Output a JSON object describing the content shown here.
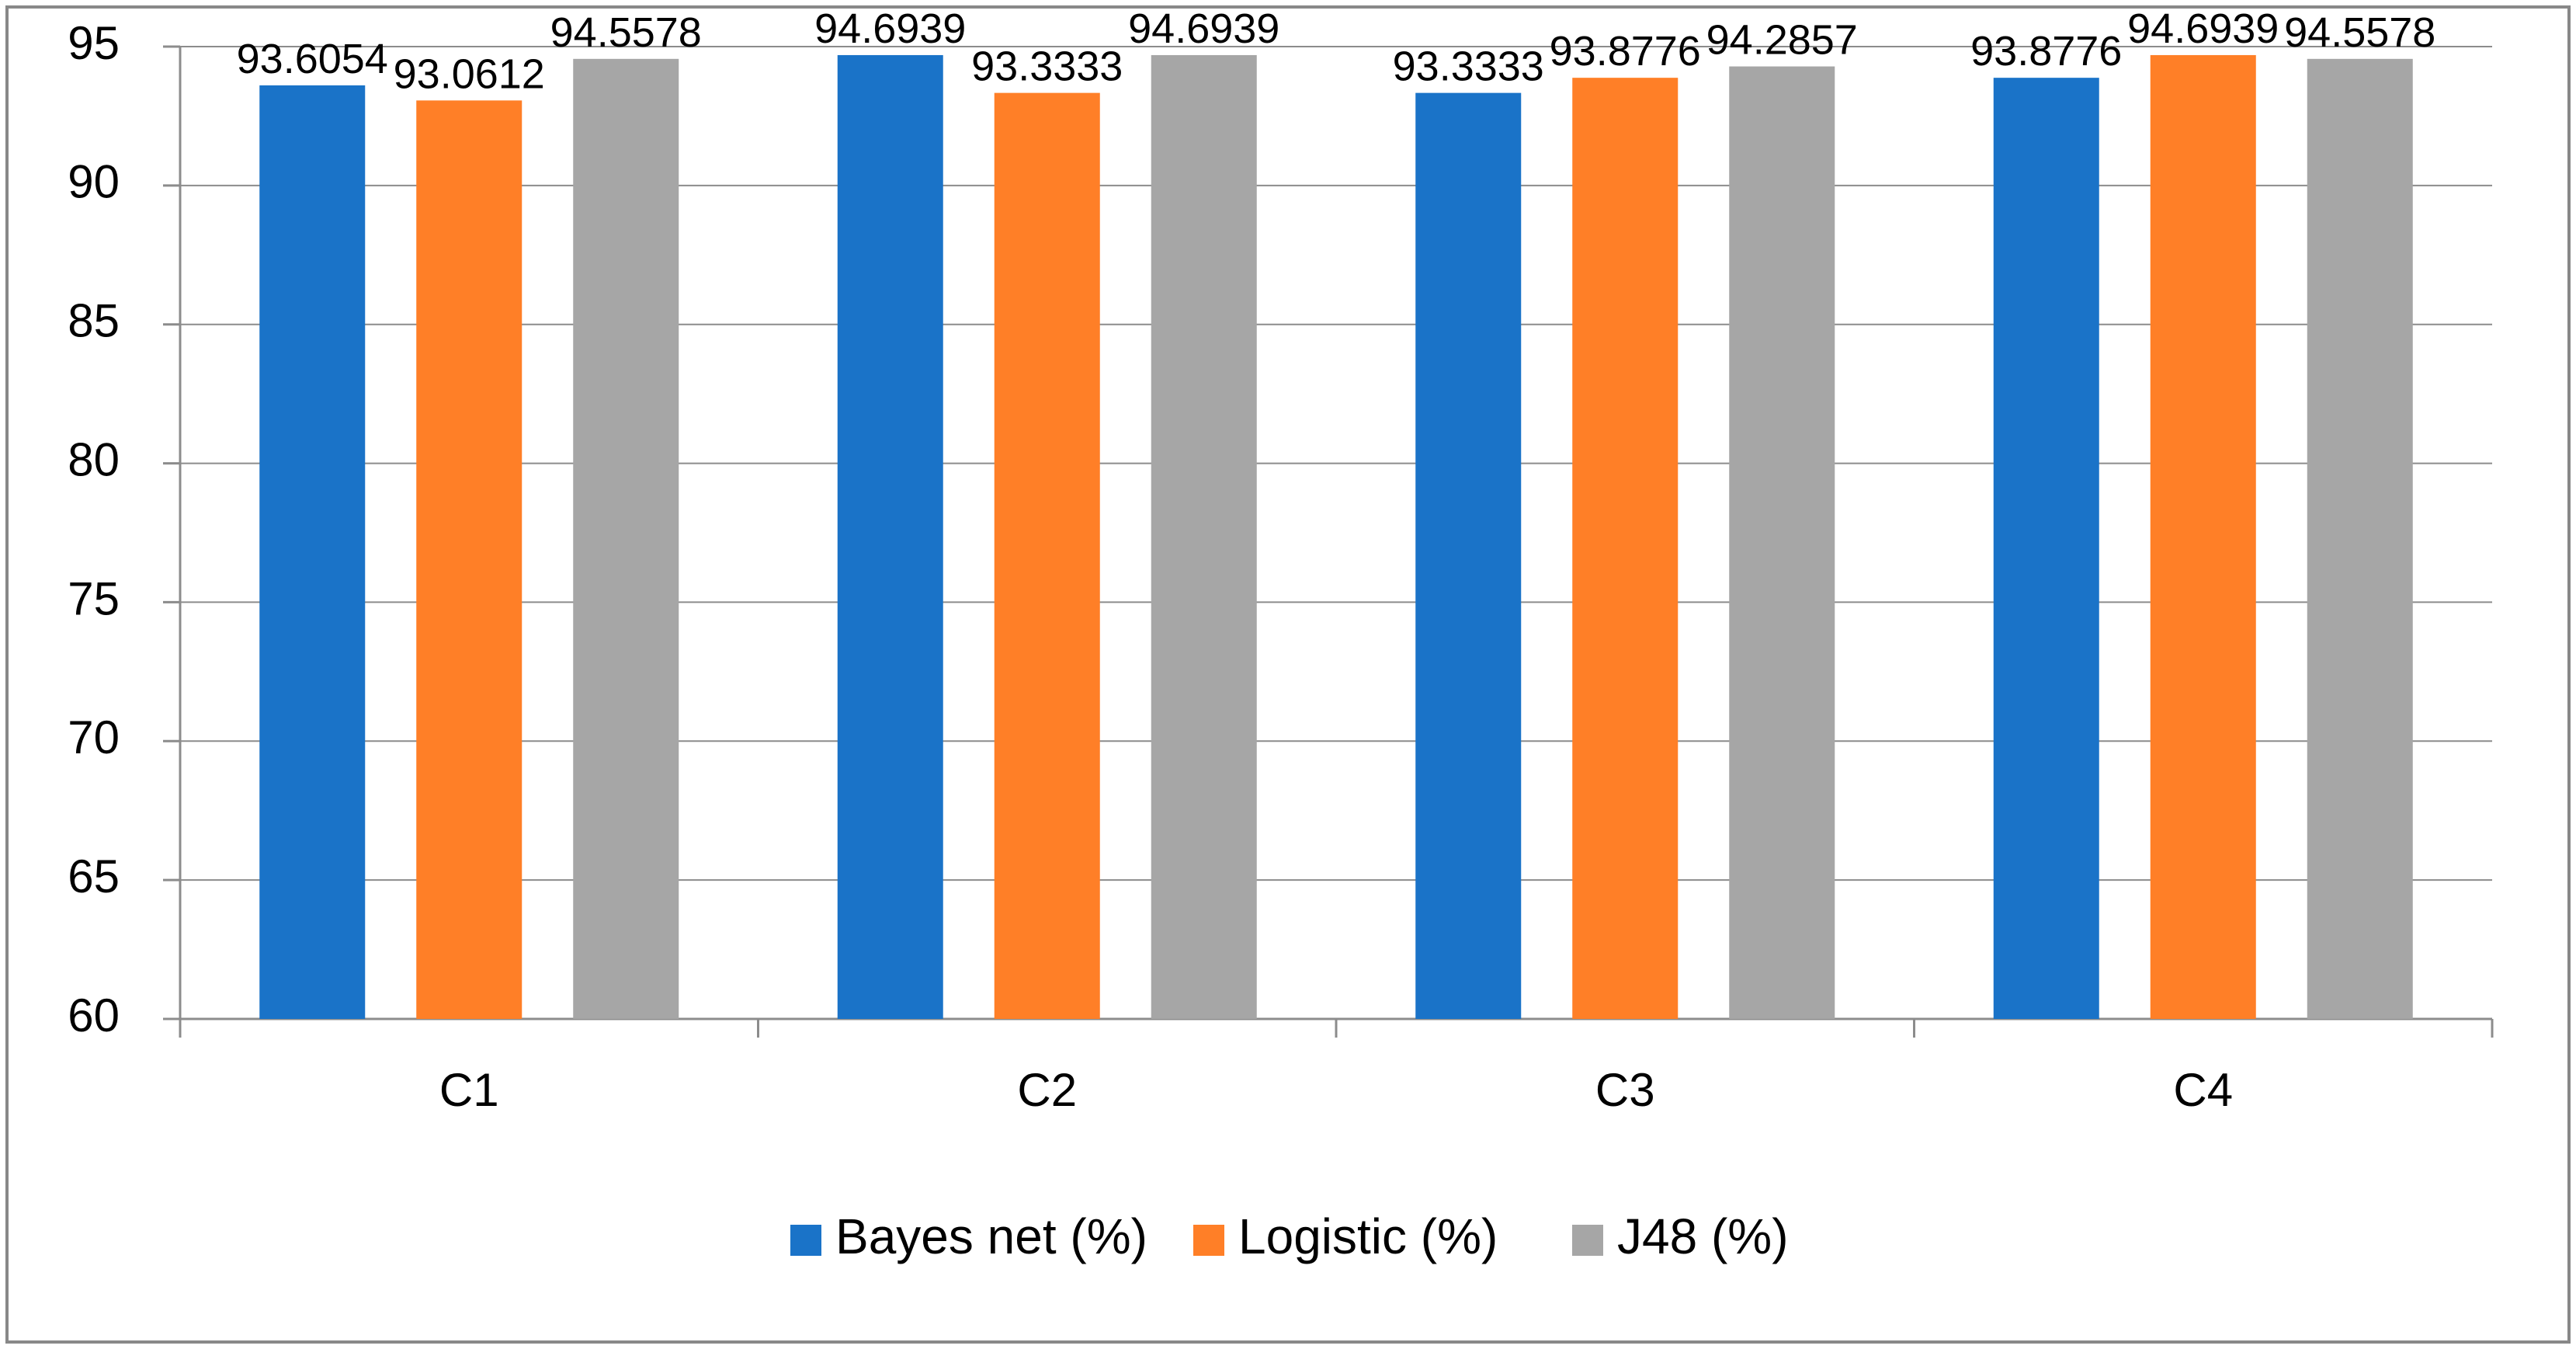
{
  "chart_data": {
    "type": "bar",
    "title": "",
    "xlabel": "",
    "ylabel": "",
    "categories": [
      "C1",
      "C2",
      "C3",
      "C4"
    ],
    "ylim": [
      60,
      95
    ],
    "yticks": [
      60,
      65,
      70,
      75,
      80,
      85,
      90,
      95
    ],
    "grid": true,
    "legend_position": "bottom",
    "series": [
      {
        "name": "Bayes net (%)",
        "color": "#1A73C8",
        "values": [
          93.6054,
          94.6939,
          93.3333,
          93.8776
        ],
        "labels": [
          "93.6054",
          "94.6939",
          "93.3333",
          "93.8776"
        ]
      },
      {
        "name": "Logistic (%)",
        "color": "#FF7F27",
        "values": [
          93.0612,
          93.3333,
          93.8776,
          94.6939
        ],
        "labels": [
          "93.0612",
          "93.3333",
          "93.8776",
          "94.6939"
        ]
      },
      {
        "name": "J48 (%)",
        "color": "#A6A6A6",
        "values": [
          94.5578,
          94.6939,
          94.2857,
          94.5578
        ],
        "labels": [
          "94.5578",
          "94.6939",
          "94.2857",
          "94.5578"
        ]
      }
    ]
  }
}
